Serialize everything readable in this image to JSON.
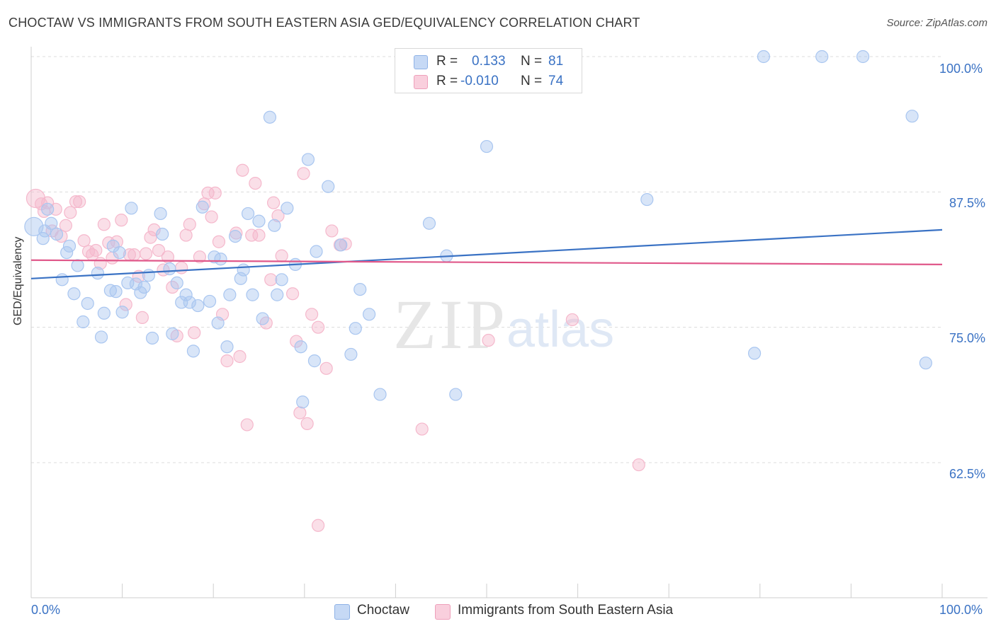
{
  "title": "CHOCTAW VS IMMIGRANTS FROM SOUTH EASTERN ASIA GED/EQUIVALENCY CORRELATION CHART",
  "source": "Source: ZipAtlas.com",
  "watermark": {
    "zip": "ZIP",
    "atlas": "atlas"
  },
  "legend": {
    "r_label": "R =",
    "n_label": "N =",
    "rows": [
      {
        "r": "0.133",
        "n": "81",
        "color": "#a9c6f0"
      },
      {
        "r": "-0.010",
        "n": "74",
        "color": "#f5b8cc"
      }
    ]
  },
  "bottom_legend": {
    "series1": "Choctaw",
    "series2": "Immigrants from South Eastern Asia"
  },
  "chart_data": {
    "type": "scatter",
    "title": "CHOCTAW VS IMMIGRANTS FROM SOUTH EASTERN ASIA GED/EQUIVALENCY CORRELATION CHART",
    "xlabel": "",
    "ylabel": "GED/Equivalency",
    "xlim": [
      0,
      100
    ],
    "ylim": [
      52,
      101
    ],
    "x_tick_labels": [
      "0.0%",
      "100.0%"
    ],
    "y_ticks": [
      62.5,
      75.0,
      87.5,
      100.0
    ],
    "y_tick_labels": [
      "62.5%",
      "75.0%",
      "87.5%",
      "100.0%"
    ],
    "grid": true,
    "legend_position": "top-center",
    "series": [
      {
        "name": "Choctaw",
        "color": "#3a72c4",
        "fill": "#a9c6f0",
        "r": 0.133,
        "n": 81,
        "trend": {
          "x": [
            0,
            100
          ],
          "y": [
            79.5,
            84.0
          ]
        },
        "points": [
          [
            0.3,
            84.3
          ],
          [
            1.3,
            83.2
          ],
          [
            1.5,
            83.9
          ],
          [
            1.8,
            85.9
          ],
          [
            2.2,
            84.6
          ],
          [
            2.8,
            83.6
          ],
          [
            3.4,
            79.4
          ],
          [
            3.9,
            81.9
          ],
          [
            4.2,
            82.5
          ],
          [
            4.7,
            78.1
          ],
          [
            5.1,
            80.7
          ],
          [
            5.7,
            75.5
          ],
          [
            6.2,
            77.2
          ],
          [
            7.3,
            80.0
          ],
          [
            7.7,
            74.1
          ],
          [
            8.0,
            76.3
          ],
          [
            8.7,
            78.4
          ],
          [
            9.0,
            82.5
          ],
          [
            9.3,
            78.3
          ],
          [
            9.7,
            81.9
          ],
          [
            10.0,
            76.4
          ],
          [
            10.6,
            79.1
          ],
          [
            11.0,
            86.0
          ],
          [
            11.5,
            79.0
          ],
          [
            12.0,
            78.2
          ],
          [
            12.4,
            78.7
          ],
          [
            12.9,
            79.8
          ],
          [
            13.3,
            74.0
          ],
          [
            14.2,
            85.5
          ],
          [
            14.4,
            83.6
          ],
          [
            15.2,
            80.4
          ],
          [
            15.5,
            74.4
          ],
          [
            16.0,
            79.1
          ],
          [
            16.5,
            77.3
          ],
          [
            17.0,
            78.0
          ],
          [
            17.4,
            77.3
          ],
          [
            17.8,
            72.8
          ],
          [
            18.3,
            77.0
          ],
          [
            18.8,
            86.1
          ],
          [
            19.6,
            77.4
          ],
          [
            20.1,
            81.5
          ],
          [
            20.5,
            75.4
          ],
          [
            20.8,
            81.3
          ],
          [
            21.5,
            73.2
          ],
          [
            21.8,
            78.0
          ],
          [
            22.4,
            83.4
          ],
          [
            23.0,
            79.5
          ],
          [
            23.3,
            80.3
          ],
          [
            23.8,
            85.5
          ],
          [
            24.3,
            78.0
          ],
          [
            25.0,
            84.8
          ],
          [
            25.4,
            75.8
          ],
          [
            26.2,
            94.4
          ],
          [
            26.7,
            84.4
          ],
          [
            27.0,
            78.0
          ],
          [
            27.5,
            79.4
          ],
          [
            28.1,
            86.0
          ],
          [
            29.0,
            80.8
          ],
          [
            29.6,
            73.2
          ],
          [
            29.8,
            68.1
          ],
          [
            30.4,
            90.5
          ],
          [
            31.1,
            71.9
          ],
          [
            31.3,
            82.0
          ],
          [
            32.6,
            88.0
          ],
          [
            34.0,
            82.6
          ],
          [
            35.1,
            72.5
          ],
          [
            35.6,
            74.9
          ],
          [
            36.1,
            78.5
          ],
          [
            37.1,
            76.2
          ],
          [
            38.3,
            68.8
          ],
          [
            43.7,
            84.6
          ],
          [
            45.6,
            81.6
          ],
          [
            46.6,
            68.8
          ],
          [
            50.0,
            91.7
          ],
          [
            67.6,
            86.8
          ],
          [
            79.4,
            72.6
          ],
          [
            91.3,
            100.0
          ],
          [
            96.7,
            94.5
          ],
          [
            98.2,
            71.7
          ],
          [
            80.4,
            100.0
          ],
          [
            86.8,
            100.0
          ]
        ]
      },
      {
        "name": "Immigrants from South Eastern Asia",
        "color": "#e0588a",
        "fill": "#f5b8cc",
        "r": -0.01,
        "n": 74,
        "trend": {
          "x": [
            0,
            100
          ],
          "y": [
            81.2,
            80.8
          ]
        },
        "points": [
          [
            0.5,
            86.9
          ],
          [
            1.1,
            86.4
          ],
          [
            1.4,
            85.7
          ],
          [
            1.8,
            86.5
          ],
          [
            2.3,
            83.9
          ],
          [
            2.7,
            85.9
          ],
          [
            3.3,
            83.4
          ],
          [
            3.8,
            84.4
          ],
          [
            4.3,
            85.6
          ],
          [
            4.9,
            86.6
          ],
          [
            5.3,
            86.6
          ],
          [
            5.8,
            83.0
          ],
          [
            6.3,
            82.0
          ],
          [
            6.7,
            81.7
          ],
          [
            7.1,
            82.1
          ],
          [
            7.6,
            80.9
          ],
          [
            8.0,
            84.5
          ],
          [
            8.5,
            82.8
          ],
          [
            8.9,
            81.4
          ],
          [
            9.4,
            82.9
          ],
          [
            9.9,
            84.9
          ],
          [
            10.4,
            77.1
          ],
          [
            10.8,
            81.7
          ],
          [
            11.3,
            81.7
          ],
          [
            11.8,
            79.7
          ],
          [
            12.2,
            75.9
          ],
          [
            12.6,
            81.8
          ],
          [
            13.1,
            83.3
          ],
          [
            13.5,
            84.0
          ],
          [
            14.0,
            82.1
          ],
          [
            14.5,
            80.3
          ],
          [
            15.0,
            81.5
          ],
          [
            15.5,
            78.7
          ],
          [
            16.0,
            74.2
          ],
          [
            16.5,
            80.5
          ],
          [
            17.0,
            83.5
          ],
          [
            17.4,
            84.5
          ],
          [
            17.9,
            74.5
          ],
          [
            18.5,
            81.5
          ],
          [
            19.0,
            86.4
          ],
          [
            19.4,
            87.4
          ],
          [
            19.8,
            85.2
          ],
          [
            20.2,
            87.4
          ],
          [
            20.6,
            82.9
          ],
          [
            21.0,
            76.2
          ],
          [
            21.5,
            71.9
          ],
          [
            22.5,
            83.7
          ],
          [
            22.9,
            72.3
          ],
          [
            23.2,
            89.5
          ],
          [
            23.7,
            66.0
          ],
          [
            24.2,
            83.5
          ],
          [
            24.6,
            88.3
          ],
          [
            25.0,
            83.5
          ],
          [
            25.8,
            75.4
          ],
          [
            26.3,
            79.4
          ],
          [
            26.6,
            86.5
          ],
          [
            27.1,
            85.3
          ],
          [
            27.5,
            81.6
          ],
          [
            28.7,
            78.1
          ],
          [
            29.1,
            73.7
          ],
          [
            29.5,
            67.1
          ],
          [
            29.9,
            89.2
          ],
          [
            30.3,
            66.1
          ],
          [
            30.8,
            76.2
          ],
          [
            31.5,
            75.0
          ],
          [
            32.4,
            71.2
          ],
          [
            33.0,
            83.9
          ],
          [
            33.9,
            82.6
          ],
          [
            34.5,
            82.7
          ],
          [
            42.9,
            65.6
          ],
          [
            50.2,
            73.8
          ],
          [
            59.4,
            75.7
          ],
          [
            66.7,
            62.3
          ],
          [
            31.5,
            56.7
          ]
        ]
      }
    ]
  }
}
